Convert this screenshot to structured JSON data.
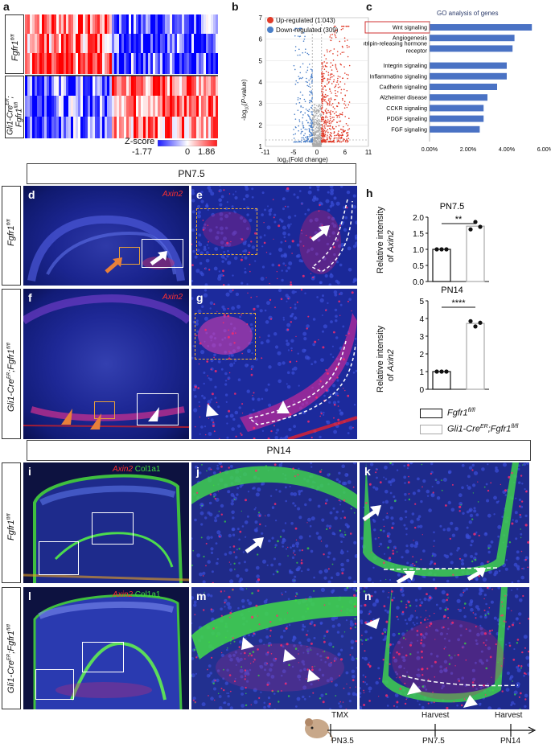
{
  "panel_a": {
    "label": "a",
    "row_label_top": "Fgfr1",
    "row_label_top_sup": "fl/fl",
    "row_label_bot_1": "Gli1-Cre",
    "row_label_bot_1_sup": "ER",
    "row_label_bot_1_tail": ";",
    "row_label_bot_2": "Fgfr1",
    "row_label_bot_2_sup": "fl/fl",
    "zscore_label": "Z-score",
    "zscore_min": "-1.77",
    "zscore_mid": "0",
    "zscore_max": "1.86"
  },
  "panel_b": {
    "label": "b",
    "legend_up": "Up-regulated (1 043)",
    "legend_down": "Down-regulated (309)",
    "ylabel": "-log10(P-value)",
    "xlabel": "log2(Fold change)",
    "up_color": "#e03c2a",
    "down_color": "#4a7fc8"
  },
  "panel_c": {
    "label": "c",
    "title": "GO analysis of genes",
    "bar_color": "#4a72c4",
    "highlight_color": "#d03030"
  },
  "panel_d": {
    "label": "d",
    "stain": "Axin2",
    "row_label": "Fgfr1",
    "row_label_sup": "fl/fl"
  },
  "panel_e": {
    "label": "e"
  },
  "panel_f": {
    "label": "f",
    "stain": "Axin2",
    "row_label_1": "Gli1-Cre",
    "row_label_1_sup": "ER",
    "row_label_2": ";Fgfr1",
    "row_label_2_sup": "fl/fl"
  },
  "panel_g": {
    "label": "g"
  },
  "header_pn75": "PN7.5",
  "header_pn14": "PN14",
  "panel_h": {
    "label": "h",
    "ylabel_1": "Relative intensity",
    "ylabel_2_pre": "of ",
    "ylabel_2_gene": "Axin2",
    "legend_a": "Fgfr1",
    "legend_a_sup": "fl/fl",
    "legend_b": "Gli1-Cre",
    "legend_b_sup1": "ER",
    "legend_b_mid": ";Fgfr1",
    "legend_b_sup2": "fl/fl"
  },
  "panel_i": {
    "label": "i",
    "stain_red": "Axin2",
    "stain_green": "Col1a1",
    "row_label": "Fgfr1",
    "row_label_sup": "fl/fl"
  },
  "panel_j": {
    "label": "j"
  },
  "panel_k": {
    "label": "k"
  },
  "panel_l": {
    "label": "l",
    "stain_red": "Axin2",
    "stain_green": "Col1a1",
    "row_label_1": "Gli1-Cre",
    "row_label_1_sup": "ER",
    "row_label_2": ";Fgfr1",
    "row_label_2_sup": "fl/fl"
  },
  "panel_m": {
    "label": "m"
  },
  "panel_n": {
    "label": "n"
  },
  "timeline": {
    "events": [
      {
        "top": "TMX",
        "bottom": "PN3.5"
      },
      {
        "top": "Harvest",
        "bottom": "PN7.5"
      },
      {
        "top": "Harvest",
        "bottom": "PN14"
      }
    ]
  },
  "chart_data": [
    {
      "type": "heatmap",
      "rows": [
        "Fgfr1 fl/fl (1)",
        "Fgfr1 fl/fl (2)",
        "Fgfr1 fl/fl (3)",
        "Gli1-CreER;Fgfr1 fl/fl (1)",
        "Gli1-CreER;Fgfr1 fl/fl (2)",
        "Gli1-CreER;Fgfr1 fl/fl (3)"
      ],
      "colorbar": {
        "label": "Z-score",
        "min": -1.77,
        "max": 1.86,
        "low_color": "#1a1aff",
        "mid_color": "#ffffff",
        "high_color": "#ff1a1a"
      }
    },
    {
      "type": "scatter",
      "xlabel": "log2(Fold change)",
      "ylabel": "-log10(P-value)",
      "xlim": [
        -11,
        11
      ],
      "ylim": [
        1,
        7
      ],
      "x_ticks": [
        -11,
        -5,
        0,
        6,
        11
      ],
      "y_ticks": [
        1,
        2,
        3,
        4,
        5,
        6,
        7
      ],
      "series": [
        {
          "name": "Up-regulated (1 043)",
          "count": 1043
        },
        {
          "name": "Down-regulated (309)",
          "count": 309
        }
      ]
    },
    {
      "type": "bar",
      "orientation": "horizontal",
      "title": "GO analysis of genes",
      "categories": [
        "Wnt signaling",
        "Angiogenesis",
        "Gonadotripin-releasing hormone receptor",
        "Integrin signaling",
        "Inflammatino signaling",
        "Cadherin signaling",
        "Alzheimer disease",
        "CCKR signaling",
        "PDGF signaling",
        "FGF signaling"
      ],
      "values": [
        5.3,
        4.4,
        4.3,
        4.0,
        4.0,
        3.5,
        3.0,
        2.8,
        2.8,
        2.6
      ],
      "x_ticks": [
        "0.00%",
        "2.00%",
        "4.00%",
        "6.00%"
      ],
      "xlim": [
        0,
        6
      ]
    },
    {
      "type": "bar",
      "title": "PN7.5",
      "categories": [
        "Fgfr1 fl/fl",
        "Gli1-CreER;Fgfr1 fl/fl"
      ],
      "values": [
        1.0,
        1.72
      ],
      "points": [
        [
          1.0,
          1.0,
          1.0
        ],
        [
          1.62,
          1.85,
          1.7
        ]
      ],
      "ylim": [
        0,
        2.0
      ],
      "y_ticks": [
        "0.0",
        "0.5",
        "1.0",
        "1.5",
        "2.0"
      ],
      "significance": "**"
    },
    {
      "type": "bar",
      "title": "PN14",
      "categories": [
        "Fgfr1 fl/fl",
        "Gli1-CreER;Fgfr1 fl/fl"
      ],
      "values": [
        1.0,
        3.72
      ],
      "points": [
        [
          1.0,
          1.0,
          1.0
        ],
        [
          3.85,
          3.55,
          3.76
        ]
      ],
      "ylim": [
        0,
        5
      ],
      "y_ticks": [
        "0",
        "1",
        "2",
        "3",
        "4",
        "5"
      ],
      "significance": "****"
    }
  ]
}
